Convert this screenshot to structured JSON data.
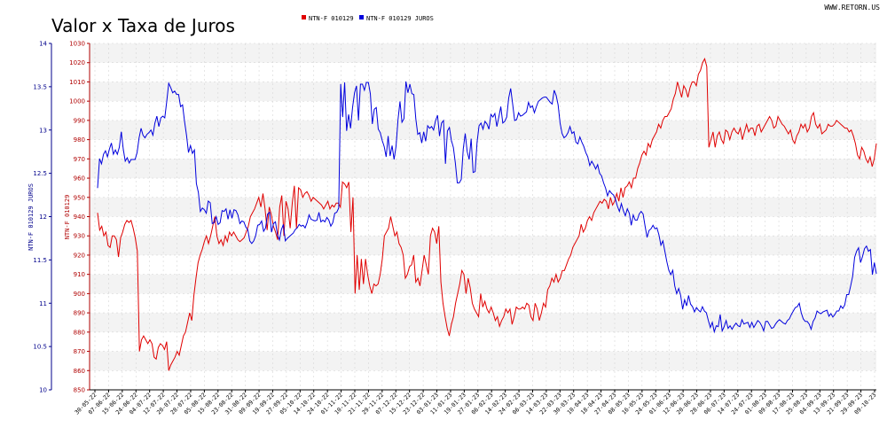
{
  "title": "Valor x Taxa de Juros",
  "site": "WWW.RETORN.US",
  "colors": {
    "price": "#e00000",
    "rate": "#0000dd",
    "leftAxis": "#00008b",
    "rightAxis": "#b00000",
    "bandA": "#f3f3f3",
    "bandB": "#ffffff",
    "grid": "#d6d6d6"
  },
  "chart_data": {
    "type": "line",
    "title": "Valor x Taxa de Juros",
    "legend_position": "top",
    "grid": true,
    "y_left": {
      "label": "NTN-F 010129 JUROS",
      "range": [
        10,
        14
      ],
      "ticks": [
        "10",
        "10.5",
        "11",
        "11.5",
        "12",
        "12.5",
        "13",
        "13.5",
        "14"
      ]
    },
    "y_right": {
      "label": "NTN-F 010129",
      "range": [
        850,
        1030
      ],
      "ticks": [
        "850",
        "860",
        "870",
        "880",
        "890",
        "900",
        "910",
        "920",
        "930",
        "940",
        "950",
        "960",
        "970",
        "980",
        "990",
        "1000",
        "1010",
        "1020",
        "1030"
      ]
    },
    "x_ticks": [
      "30-05-22",
      "07-06-22",
      "15-06-22",
      "24-06-22",
      "04-07-22",
      "12-07-22",
      "20-07-22",
      "28-07-22",
      "05-08-22",
      "15-08-22",
      "23-08-22",
      "31-08-22",
      "09-09-22",
      "19-09-22",
      "27-09-22",
      "05-10-22",
      "14-10-22",
      "24-10-22",
      "01-11-22",
      "10-11-22",
      "21-11-22",
      "29-11-22",
      "07-12-22",
      "15-12-22",
      "23-12-22",
      "03-01-23",
      "11-01-23",
      "19-01-23",
      "27-01-23",
      "06-02-23",
      "14-02-23",
      "24-02-23",
      "06-03-23",
      "14-03-23",
      "22-03-23",
      "30-03-23",
      "10-04-23",
      "18-04-23",
      "27-04-23",
      "08-05-23",
      "16-05-23",
      "24-05-23",
      "01-06-23",
      "12-06-23",
      "20-06-23",
      "28-06-23",
      "06-07-23",
      "14-07-23",
      "24-07-23",
      "01-08-23",
      "09-08-23",
      "17-08-23",
      "25-08-23",
      "04-09-23",
      "13-09-23",
      "21-09-23",
      "29-09-23",
      "09-10-23"
    ],
    "series": [
      {
        "name": "NTN-F 010129",
        "axis": "right",
        "values": [
          942,
          933,
          935,
          930,
          932,
          925,
          924,
          930,
          930,
          928,
          919,
          929,
          932,
          936,
          938,
          937,
          938,
          934,
          929,
          922,
          870,
          876,
          878,
          876,
          874,
          876,
          874,
          867,
          866,
          872,
          874,
          873,
          871,
          875,
          860,
          863,
          865,
          867,
          870,
          868,
          873,
          878,
          880,
          885,
          890,
          886,
          899,
          908,
          916,
          920,
          923,
          927,
          930,
          926,
          930,
          935,
          940,
          930,
          926,
          928,
          925,
          930,
          927,
          932,
          930,
          932,
          930,
          928,
          927,
          928,
          929,
          932,
          935,
          940,
          942,
          944,
          947,
          950,
          945,
          952,
          944,
          933,
          945,
          941,
          935,
          932,
          928,
          945,
          951,
          930,
          948,
          944,
          934,
          947,
          956,
          934,
          955,
          954,
          950,
          952,
          953,
          951,
          948,
          950,
          949,
          948,
          947,
          946,
          944,
          946,
          948,
          944,
          946,
          945,
          947,
          947,
          945,
          958,
          957,
          955,
          958,
          932,
          950,
          900,
          920,
          902,
          918,
          905,
          918,
          910,
          904,
          900,
          905,
          904,
          905,
          910,
          918,
          930,
          932,
          934,
          940,
          935,
          930,
          932,
          926,
          924,
          920,
          908,
          910,
          914,
          915,
          920,
          906,
          908,
          904,
          912,
          920,
          915,
          910,
          930,
          934,
          932,
          926,
          935,
          906,
          895,
          888,
          882,
          878,
          884,
          888,
          895,
          900,
          905,
          912,
          910,
          900,
          908,
          903,
          895,
          892,
          890,
          888,
          900,
          893,
          896,
          892,
          890,
          893,
          890,
          886,
          888,
          883,
          886,
          888,
          892,
          890,
          892,
          884,
          888,
          893,
          892,
          892,
          893,
          892,
          895,
          894,
          888,
          886,
          895,
          892,
          886,
          890,
          895,
          893,
          902,
          904,
          908,
          906,
          910,
          906,
          908,
          912,
          912,
          915,
          918,
          920,
          924,
          926,
          928,
          930,
          936,
          932,
          934,
          938,
          940,
          938,
          942,
          944,
          946,
          948,
          947,
          949,
          948,
          944,
          950,
          946,
          948,
          952,
          948,
          955,
          950,
          955,
          956,
          958,
          955,
          960,
          960,
          965,
          968,
          972,
          974,
          972,
          978,
          976,
          980,
          982,
          984,
          988,
          986,
          990,
          992,
          992,
          994,
          996,
          1001,
          1004,
          1010,
          1006,
          1002,
          1008,
          1006,
          1002,
          1007,
          1010,
          1010,
          1008,
          1014,
          1016,
          1020,
          1022,
          1018,
          976,
          980,
          984,
          976,
          982,
          984,
          980,
          978,
          985,
          984,
          980,
          984,
          986,
          984,
          983,
          986,
          980,
          984,
          988,
          984,
          986,
          986,
          982,
          987,
          988,
          984,
          986,
          988,
          990,
          992,
          990,
          986,
          987,
          992,
          990,
          988,
          987,
          985,
          983,
          985,
          980,
          978,
          982,
          984,
          988,
          986,
          988,
          984,
          986,
          992,
          994,
          988,
          986,
          988,
          983,
          984,
          985,
          988,
          987,
          987,
          988,
          990,
          989,
          988,
          987,
          986,
          986,
          984,
          985,
          982,
          978,
          972,
          970,
          976,
          974,
          970,
          968,
          971,
          966,
          970,
          978
        ]
      },
      {
        "name": "NTN-F 010129 JUROS",
        "axis": "left",
        "values": [
          12.33,
          12.67,
          12.61,
          12.72,
          12.76,
          12.69,
          12.78,
          12.85,
          12.72,
          12.77,
          12.72,
          12.8,
          12.98,
          12.78,
          12.64,
          12.68,
          12.62,
          12.66,
          12.66,
          12.66,
          12.74,
          12.91,
          13.02,
          12.94,
          12.91,
          12.95,
          12.97,
          13.0,
          12.94,
          13.08,
          13.16,
          13.04,
          13.14,
          13.16,
          13.14,
          13.33,
          13.54,
          13.49,
          13.43,
          13.45,
          13.41,
          13.41,
          13.27,
          13.29,
          13.1,
          12.94,
          12.74,
          12.82,
          12.73,
          12.77,
          12.38,
          12.28,
          12.06,
          12.1,
          12.08,
          12.04,
          12.18,
          12.16,
          11.92,
          11.93,
          12.0,
          11.91,
          11.93,
          12.07,
          12.06,
          12.09,
          11.97,
          12.08,
          11.98,
          12.08,
          12.07,
          12.02,
          11.92,
          11.95,
          11.94,
          11.88,
          11.85,
          11.72,
          11.69,
          11.72,
          11.78,
          11.9,
          11.91,
          11.95,
          11.83,
          11.87,
          12.03,
          12.05,
          11.82,
          11.92,
          11.94,
          11.79,
          11.73,
          11.85,
          11.91,
          11.72,
          11.75,
          11.77,
          11.79,
          11.81,
          11.85,
          11.87,
          11.91,
          11.89,
          11.9,
          11.87,
          11.93,
          12.02,
          11.97,
          11.96,
          11.95,
          11.96,
          12.05,
          11.94,
          11.96,
          11.94,
          11.99,
          11.96,
          11.89,
          11.93,
          12.04,
          12.05,
          12.1,
          13.53,
          13.15,
          13.55,
          12.99,
          13.18,
          13.02,
          13.26,
          13.43,
          13.51,
          13.11,
          13.53,
          13.53,
          13.46,
          13.55,
          13.55,
          13.42,
          13.07,
          13.24,
          13.26,
          13.01,
          12.97,
          12.88,
          12.81,
          12.69,
          12.93,
          12.7,
          12.82,
          12.66,
          12.81,
          13.12,
          13.33,
          13.09,
          13.13,
          13.56,
          13.43,
          13.53,
          13.42,
          13.41,
          13.13,
          12.95,
          12.97,
          12.85,
          12.98,
          12.87,
          13.05,
          13.02,
          13.04,
          13.0,
          13.11,
          13.17,
          12.93,
          13.08,
          13.11,
          12.61,
          12.99,
          13.03,
          12.88,
          12.8,
          12.62,
          12.39,
          12.39,
          12.43,
          12.78,
          12.96,
          12.75,
          12.66,
          12.9,
          12.51,
          12.52,
          12.86,
          13.05,
          13.08,
          13.01,
          13.1,
          13.07,
          13.01,
          13.18,
          13.15,
          13.19,
          13.04,
          13.15,
          13.27,
          13.08,
          13.1,
          13.15,
          13.37,
          13.48,
          13.3,
          13.11,
          13.12,
          13.2,
          13.16,
          13.17,
          13.19,
          13.21,
          13.32,
          13.26,
          13.28,
          13.2,
          13.27,
          13.33,
          13.35,
          13.37,
          13.38,
          13.38,
          13.35,
          13.32,
          13.3,
          13.46,
          13.4,
          13.29,
          13.08,
          12.96,
          12.91,
          12.93,
          12.97,
          13.04,
          12.96,
          12.98,
          12.86,
          12.84,
          12.92,
          12.86,
          12.81,
          12.74,
          12.69,
          12.59,
          12.64,
          12.6,
          12.55,
          12.6,
          12.5,
          12.47,
          12.39,
          12.33,
          12.24,
          12.3,
          12.27,
          12.25,
          12.2,
          12.12,
          12.06,
          12.15,
          12.07,
          12.01,
          12.09,
          12.04,
          11.9,
          12.02,
          11.96,
          11.96,
          12.03,
          12.06,
          12.03,
          11.89,
          11.76,
          11.84,
          11.86,
          11.9,
          11.86,
          11.87,
          11.79,
          11.67,
          11.72,
          11.6,
          11.48,
          11.38,
          11.33,
          11.38,
          11.2,
          11.11,
          11.17,
          11.09,
          10.93,
          11.04,
          10.97,
          11.09,
          10.99,
          10.96,
          10.9,
          10.95,
          10.92,
          10.9,
          10.96,
          10.91,
          10.89,
          10.8,
          10.72,
          10.78,
          10.67,
          10.74,
          10.73,
          10.87,
          10.68,
          10.73,
          10.8,
          10.71,
          10.74,
          10.7,
          10.74,
          10.77,
          10.74,
          10.73,
          10.81,
          10.76,
          10.77,
          10.78,
          10.72,
          10.78,
          10.72,
          10.76,
          10.8,
          10.78,
          10.74,
          10.68,
          10.79,
          10.79,
          10.75,
          10.71,
          10.72,
          10.76,
          10.79,
          10.81,
          10.79,
          10.77,
          10.76,
          10.8,
          10.82,
          10.87,
          10.91,
          10.95,
          10.96,
          11.0,
          10.89,
          10.82,
          10.79,
          10.79,
          10.76,
          10.7,
          10.79,
          10.83,
          10.91,
          10.89,
          10.88,
          10.9,
          10.91,
          10.92,
          10.85,
          10.88,
          10.84,
          10.87,
          10.91,
          10.91,
          10.97,
          10.94,
          10.98,
          11.1,
          11.1,
          11.2,
          11.31,
          11.53,
          11.6,
          11.64,
          11.47,
          11.54,
          11.63,
          11.66,
          11.6,
          11.62,
          11.33,
          11.47,
          11.34
        ]
      }
    ]
  }
}
